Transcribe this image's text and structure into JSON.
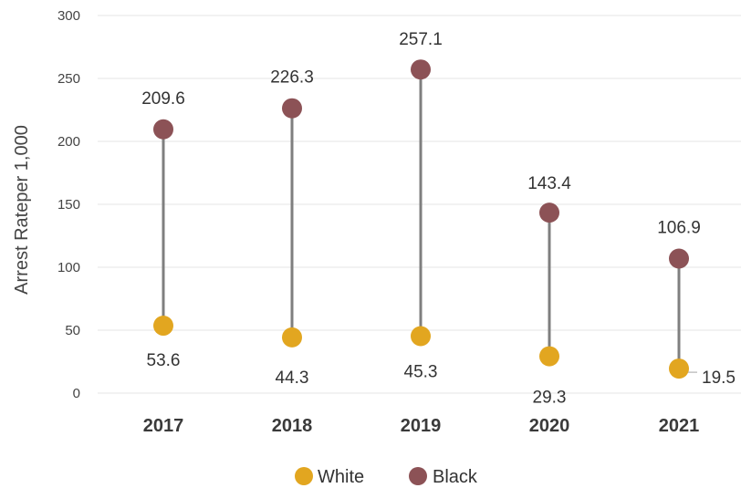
{
  "chart_data": {
    "type": "dot-range",
    "categories": [
      "2017",
      "2018",
      "2019",
      "2020",
      "2021"
    ],
    "series": [
      {
        "name": "White",
        "color": "#e2a620",
        "values": [
          53.6,
          44.3,
          45.3,
          29.3,
          19.5
        ]
      },
      {
        "name": "Black",
        "color": "#8c5256",
        "values": [
          209.6,
          226.3,
          257.1,
          143.4,
          106.9
        ]
      }
    ],
    "ylabel": "Arrest Rateper 1,000",
    "ylim": [
      0,
      300
    ],
    "yticks": [
      0,
      50,
      100,
      150,
      200,
      250,
      300
    ],
    "grid": true,
    "legend": "bottom",
    "connector_color": "#7f7f7f"
  }
}
